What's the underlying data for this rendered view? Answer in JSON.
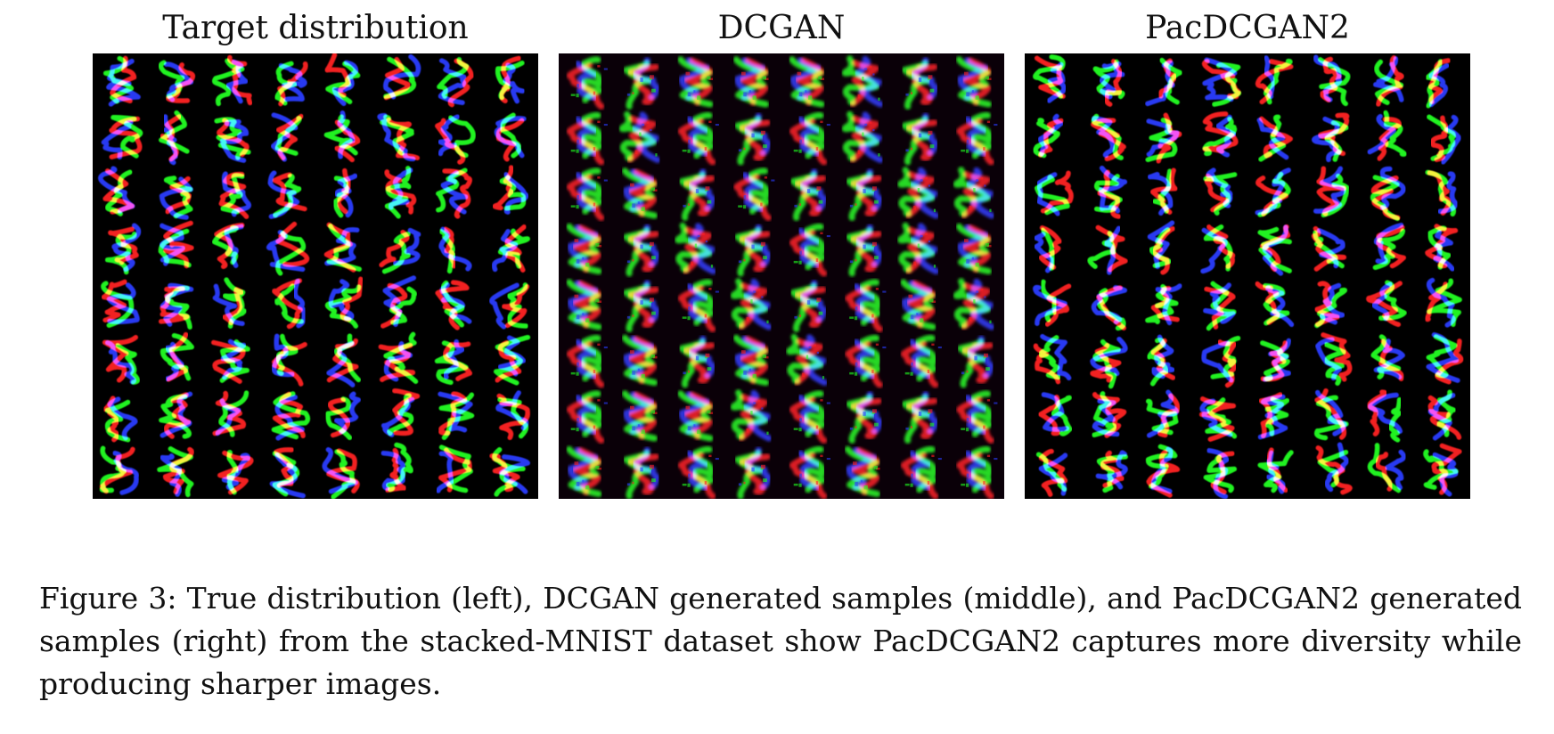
{
  "figure": {
    "panels": [
      {
        "key": "target",
        "title": "Target distribution",
        "quality": "real",
        "sample_grid": "8x8",
        "content": "stacked-MNIST digits (RGB overlaid)"
      },
      {
        "key": "dcgan",
        "title": "DCGAN",
        "quality": "collapsed",
        "sample_grid": "8x8",
        "content": "blurry, repetitive generated samples"
      },
      {
        "key": "pacdcgan2",
        "title": "PacDCGAN2",
        "quality": "diverse",
        "sample_grid": "8x8",
        "content": "sharp, diverse generated samples"
      }
    ],
    "caption": "Figure 3: True distribution (left), DCGAN generated samples (middle), and PacDCGAN2 generated samples (right) from the stacked-MNIST dataset show PacDCGAN2 captures more diversity while producing sharper images.",
    "colors": {
      "background": "#000000",
      "channel_red": "#ff2020",
      "channel_green": "#20ff20",
      "channel_blue": "#2a3cff",
      "overlap": "#ffffff",
      "dcgan_background": "#0a0008"
    }
  }
}
